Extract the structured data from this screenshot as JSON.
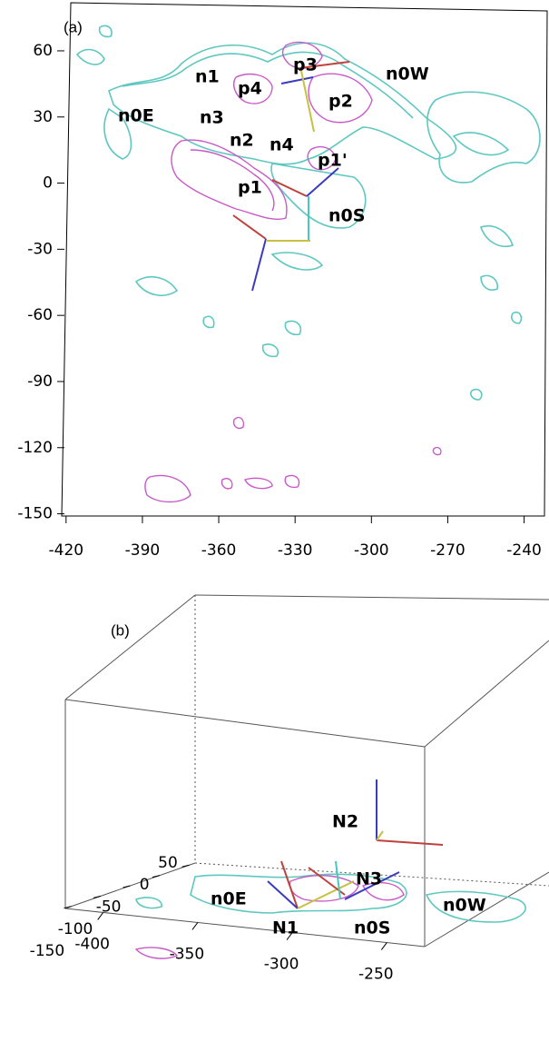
{
  "chart_data": [
    {
      "type": "contour",
      "panel_label": "(a)",
      "xlim": [
        -421,
        -232
      ],
      "ylim": [
        -151,
        81
      ],
      "xticks": [
        -420,
        -390,
        -360,
        -330,
        -300,
        -270,
        -240
      ],
      "yticks": [
        60,
        30,
        0,
        -30,
        -60,
        -90,
        -120,
        -150
      ],
      "annotations": [
        "n1",
        "n3",
        "n0E",
        "p4",
        "p3",
        "p2",
        "n0W",
        "n2",
        "n4",
        "p1'",
        "p1",
        "n0S"
      ]
    },
    {
      "type": "contour3d",
      "panel_label": "(b)",
      "xlim": [
        -420,
        -230
      ],
      "ylim": [
        -160,
        60
      ],
      "xticks": [
        -400,
        -350,
        -300,
        -250
      ],
      "yticks": [
        50,
        0,
        -50,
        -100,
        -150
      ],
      "annotations": [
        "N2",
        "N3",
        "n0E",
        "N1",
        "n0S",
        "n0W"
      ]
    }
  ]
}
